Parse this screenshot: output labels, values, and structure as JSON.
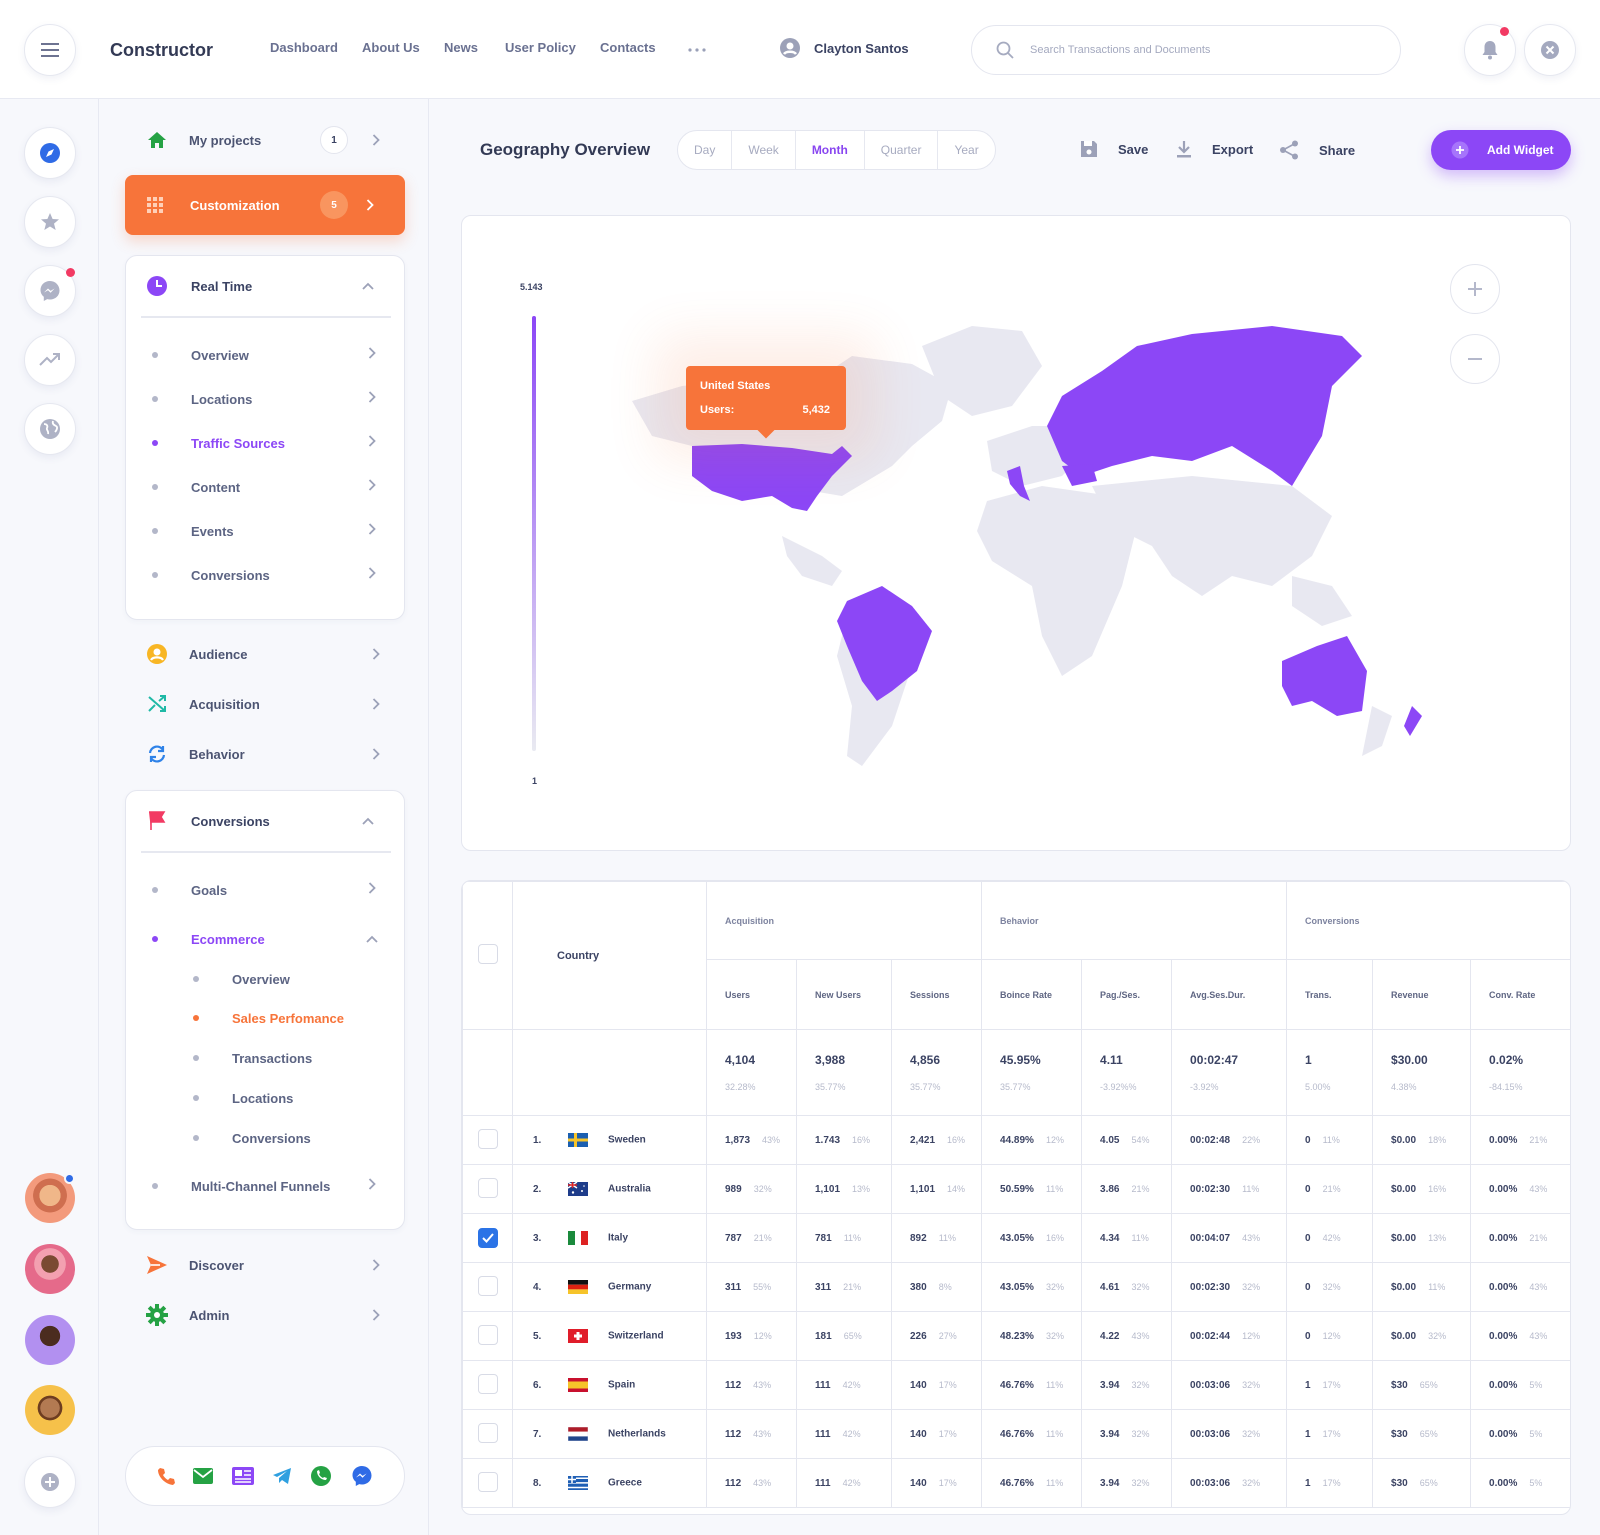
{
  "header": {
    "brand": "Constructor",
    "nav": [
      "Dashboard",
      "About Us",
      "News",
      "User Policy",
      "Contacts"
    ],
    "user_name": "Clayton Santos",
    "search_placeholder": "Search Transactions and Documents"
  },
  "sidebar": {
    "my_projects": {
      "label": "My projects",
      "badge": "1"
    },
    "customization": {
      "label": "Customization",
      "badge": "5"
    },
    "real_time": {
      "label": "Real Time",
      "items": [
        "Overview",
        "Locations",
        "Traffic Sources",
        "Content",
        "Events",
        "Conversions"
      ]
    },
    "audience": "Audience",
    "acquisition": "Acquisition",
    "behavior": "Behavior",
    "conversions": {
      "label": "Conversions",
      "goals": "Goals",
      "ecommerce": "Ecommerce",
      "ecommerce_items": [
        "Overview",
        "Sales Perfomance",
        "Transactions",
        "Locations",
        "Conversions"
      ],
      "multi_channel": "Multi-Channel Funnels"
    },
    "discover": "Discover",
    "admin": "Admin"
  },
  "toolbar": {
    "title": "Geography Overview",
    "tabs": [
      "Day",
      "Week",
      "Month",
      "Quarter",
      "Year"
    ],
    "active_tab": "Month",
    "save": "Save",
    "export": "Export",
    "share": "Share",
    "add_widget": "Add Widget"
  },
  "map": {
    "scale_max": "5.143",
    "scale_min": "1",
    "highlight_color": "#8c47f6",
    "tooltip": {
      "country": "United States",
      "metric": "Users:",
      "value": "5,432"
    }
  },
  "table": {
    "country_header": "Country",
    "groups": [
      "Acquisition",
      "Behavior",
      "Conversions"
    ],
    "columns": [
      "Users",
      "New Users",
      "Sessions",
      "Boince Rate",
      "Pag./Ses.",
      "Avg.Ses.Dur.",
      "Trans.",
      "Revenue",
      "Conv. Rate"
    ],
    "totals": [
      [
        "4,104",
        "32.28%"
      ],
      [
        "3,988",
        "35.77%"
      ],
      [
        "4,856",
        "35.77%"
      ],
      [
        "45.95%",
        "35.77%"
      ],
      [
        "4.11",
        "-3.92%%"
      ],
      [
        "00:02:47",
        "-3.92%"
      ],
      [
        "1",
        "5.00%"
      ],
      [
        "$30.00",
        "4.38%"
      ],
      [
        "0.02%",
        "-84.15%"
      ]
    ],
    "rows": [
      {
        "n": "1.",
        "country": "Sweden",
        "checked": false,
        "cells": [
          [
            "1,873",
            "43%"
          ],
          [
            "1.743",
            "16%"
          ],
          [
            "2,421",
            "16%"
          ],
          [
            "44.89%",
            "12%"
          ],
          [
            "4.05",
            "54%"
          ],
          [
            "00:02:48",
            "22%"
          ],
          [
            "0",
            "11%"
          ],
          [
            "$0.00",
            "18%"
          ],
          [
            "0.00%",
            "21%"
          ]
        ]
      },
      {
        "n": "2.",
        "country": "Australia",
        "checked": false,
        "cells": [
          [
            "989",
            "32%"
          ],
          [
            "1,101",
            "13%"
          ],
          [
            "1,101",
            "14%"
          ],
          [
            "50.59%",
            "11%"
          ],
          [
            "3.86",
            "21%"
          ],
          [
            "00:02:30",
            "11%"
          ],
          [
            "0",
            "21%"
          ],
          [
            "$0.00",
            "16%"
          ],
          [
            "0.00%",
            "43%"
          ]
        ]
      },
      {
        "n": "3.",
        "country": "Italy",
        "checked": true,
        "cells": [
          [
            "787",
            "21%"
          ],
          [
            "781",
            "11%"
          ],
          [
            "892",
            "11%"
          ],
          [
            "43.05%",
            "16%"
          ],
          [
            "4.34",
            "11%"
          ],
          [
            "00:04:07",
            "43%"
          ],
          [
            "0",
            "42%"
          ],
          [
            "$0.00",
            "13%"
          ],
          [
            "0.00%",
            "21%"
          ]
        ]
      },
      {
        "n": "4.",
        "country": "Germany",
        "checked": false,
        "cells": [
          [
            "311",
            "55%"
          ],
          [
            "311",
            "21%"
          ],
          [
            "380",
            "8%"
          ],
          [
            "43.05%",
            "32%"
          ],
          [
            "4.61",
            "32%"
          ],
          [
            "00:02:30",
            "32%"
          ],
          [
            "0",
            "32%"
          ],
          [
            "$0.00",
            "11%"
          ],
          [
            "0.00%",
            "43%"
          ]
        ]
      },
      {
        "n": "5.",
        "country": "Switzerland",
        "checked": false,
        "cells": [
          [
            "193",
            "12%"
          ],
          [
            "181",
            "65%"
          ],
          [
            "226",
            "27%"
          ],
          [
            "48.23%",
            "32%"
          ],
          [
            "4.22",
            "43%"
          ],
          [
            "00:02:44",
            "12%"
          ],
          [
            "0",
            "12%"
          ],
          [
            "$0.00",
            "32%"
          ],
          [
            "0.00%",
            "43%"
          ]
        ]
      },
      {
        "n": "6.",
        "country": "Spain",
        "checked": false,
        "cells": [
          [
            "112",
            "43%"
          ],
          [
            "111",
            "42%"
          ],
          [
            "140",
            "17%"
          ],
          [
            "46.76%",
            "11%"
          ],
          [
            "3.94",
            "32%"
          ],
          [
            "00:03:06",
            "32%"
          ],
          [
            "1",
            "17%"
          ],
          [
            "$30",
            "65%"
          ],
          [
            "0.00%",
            "5%"
          ]
        ]
      },
      {
        "n": "7.",
        "country": "Netherlands",
        "checked": false,
        "cells": [
          [
            "112",
            "43%"
          ],
          [
            "111",
            "42%"
          ],
          [
            "140",
            "17%"
          ],
          [
            "46.76%",
            "11%"
          ],
          [
            "3.94",
            "32%"
          ],
          [
            "00:03:06",
            "32%"
          ],
          [
            "1",
            "17%"
          ],
          [
            "$30",
            "65%"
          ],
          [
            "0.00%",
            "5%"
          ]
        ]
      },
      {
        "n": "8.",
        "country": "Greece",
        "checked": false,
        "cells": [
          [
            "112",
            "43%"
          ],
          [
            "111",
            "42%"
          ],
          [
            "140",
            "17%"
          ],
          [
            "46.76%",
            "11%"
          ],
          [
            "3.94",
            "32%"
          ],
          [
            "00:03:06",
            "32%"
          ],
          [
            "1",
            "17%"
          ],
          [
            "$30",
            "65%"
          ],
          [
            "0.00%",
            "5%"
          ]
        ]
      }
    ]
  },
  "colors": {
    "accent": "#8c47f6",
    "orange": "#f7743a",
    "text": "#3b4363"
  }
}
